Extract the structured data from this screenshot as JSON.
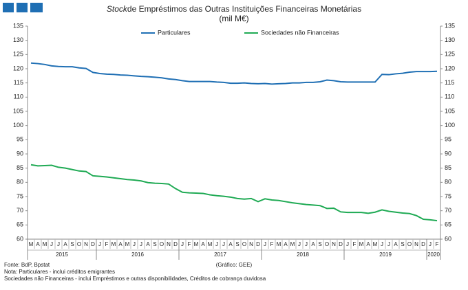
{
  "chart_data": {
    "type": "line",
    "title_italic": "Stock",
    "title": "de Empréstimos das Outras Instituições Financeiras Monetárias",
    "subtitle": "(mil M€)",
    "categories": [
      "M",
      "A",
      "M",
      "J",
      "J",
      "A",
      "S",
      "O",
      "N",
      "D",
      "J",
      "F",
      "M",
      "A",
      "M",
      "J",
      "J",
      "A",
      "S",
      "O",
      "N",
      "D",
      "J",
      "F",
      "M",
      "A",
      "M",
      "J",
      "J",
      "A",
      "S",
      "O",
      "N",
      "D",
      "J",
      "F",
      "M",
      "A",
      "M",
      "J",
      "J",
      "A",
      "S",
      "O",
      "N",
      "D",
      "J",
      "F",
      "M",
      "A",
      "M",
      "J",
      "J",
      "A",
      "S",
      "O",
      "N",
      "D",
      "J",
      "F"
    ],
    "years": [
      "2015",
      "2016",
      "2017",
      "2018",
      "2019",
      "2020"
    ],
    "series": [
      {
        "name": "Particulares",
        "color": "#1f6fb4",
        "values": [
          122.0,
          121.8,
          121.5,
          121.0,
          120.8,
          120.7,
          120.7,
          120.3,
          120.1,
          118.7,
          118.3,
          118.1,
          118.0,
          117.8,
          117.7,
          117.5,
          117.3,
          117.2,
          117.0,
          116.8,
          116.4,
          116.2,
          115.8,
          115.5,
          115.5,
          115.5,
          115.5,
          115.3,
          115.2,
          114.9,
          114.9,
          115.0,
          114.8,
          114.7,
          114.8,
          114.6,
          114.7,
          114.8,
          115.0,
          115.0,
          115.2,
          115.2,
          115.4,
          116.0,
          115.8,
          115.4,
          115.3,
          115.3,
          115.3,
          115.3,
          115.3,
          118.0,
          117.9,
          118.2,
          118.4,
          118.8,
          119.0,
          119.0,
          119.0,
          119.1
        ]
      },
      {
        "name": "Sociedades não Financeiras",
        "color": "#1faa54",
        "values": [
          86.2,
          85.8,
          85.9,
          86.0,
          85.3,
          85.0,
          84.5,
          84.0,
          83.8,
          82.3,
          82.1,
          81.9,
          81.6,
          81.3,
          81.0,
          80.8,
          80.5,
          79.9,
          79.7,
          79.6,
          79.4,
          77.8,
          76.5,
          76.3,
          76.2,
          76.1,
          75.6,
          75.3,
          75.1,
          74.8,
          74.3,
          74.1,
          74.3,
          73.2,
          74.2,
          73.8,
          73.6,
          73.2,
          72.8,
          72.5,
          72.2,
          72.0,
          71.8,
          70.8,
          70.9,
          69.6,
          69.4,
          69.4,
          69.4,
          69.1,
          69.5,
          70.3,
          69.8,
          69.5,
          69.2,
          69.0,
          68.3,
          67.0,
          66.8,
          66.5
        ]
      }
    ],
    "ylim": [
      60,
      135
    ],
    "yticks": [
      60,
      65,
      70,
      75,
      80,
      85,
      90,
      95,
      100,
      105,
      110,
      115,
      120,
      125,
      130,
      135
    ],
    "y2lim": [
      60,
      135
    ],
    "y2ticks": [
      60,
      65,
      70,
      75,
      80,
      85,
      90,
      95,
      100,
      105,
      110,
      115,
      120,
      125,
      130,
      135
    ],
    "source": "Fonte: BdP, Bpstat",
    "credit": "(Gráfico: GEE)",
    "notes": [
      "Nota: Particulares - inclui créditos emigrantes",
      "Sociedades não Financeiras - inclui Empréstimos e outras disponibilidades, Créditos de cobrança duvidosa"
    ]
  }
}
